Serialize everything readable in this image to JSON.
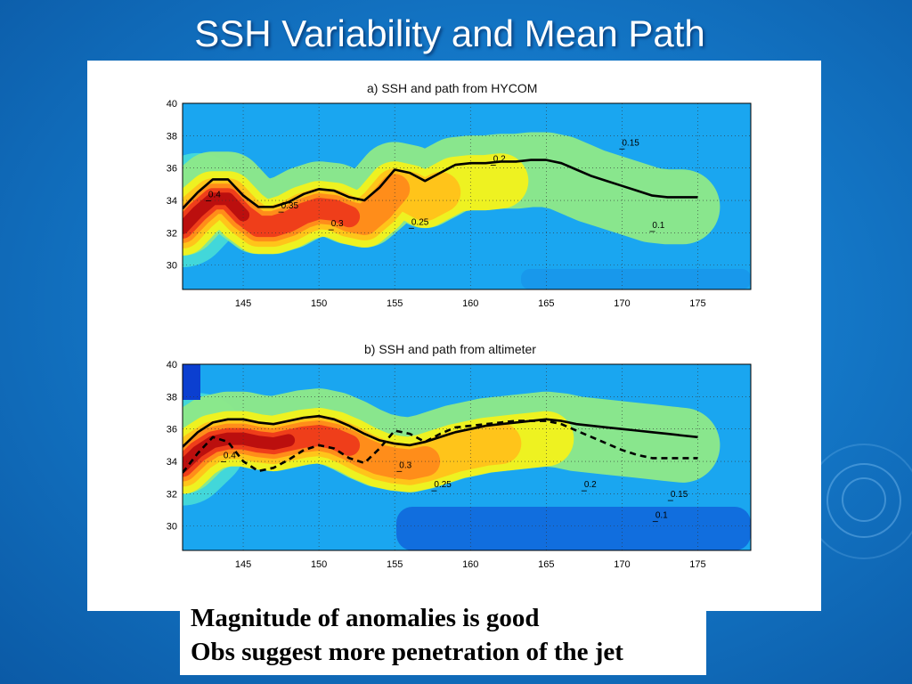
{
  "slide": {
    "title": "SSH Variability and Mean Path",
    "captions": [
      "Magnitude of anomalies is good",
      "Obs suggest more penetration of the jet"
    ]
  },
  "colors": {
    "background": "#1478c8",
    "scale": [
      "#0b3fd0",
      "#1aa6f0",
      "#44d8d8",
      "#8ee888",
      "#f2f21c",
      "#ffc21a",
      "#ff8a1a",
      "#ee3a1a",
      "#b80e0e"
    ]
  },
  "chart_data": [
    {
      "type": "heatmap",
      "title": "a) SSH and path from HYCOM",
      "x_ticks": [
        "145",
        "150",
        "155",
        "160",
        "165",
        "170",
        "175"
      ],
      "y_ticks": [
        "40",
        "38",
        "36",
        "34",
        "32",
        "30"
      ],
      "xlim": [
        141,
        178.5
      ],
      "ylim": [
        28.5,
        40
      ],
      "contour_labels": [
        {
          "text": "0.4",
          "x": 142.7,
          "y": 34.2
        },
        {
          "text": "0.35",
          "x": 147.5,
          "y": 33.5
        },
        {
          "text": "0.3",
          "x": 150.8,
          "y": 32.4
        },
        {
          "text": "0.25",
          "x": 156.1,
          "y": 32.5
        },
        {
          "text": "0.2",
          "x": 161.5,
          "y": 36.4
        },
        {
          "text": "0.15",
          "x": 170.0,
          "y": 37.4
        },
        {
          "text": "0.1",
          "x": 172.0,
          "y": 32.3
        }
      ],
      "paths": [
        {
          "style": "solid",
          "x": [
            141,
            142,
            143,
            144,
            145,
            146,
            147,
            148,
            149,
            150,
            151,
            152,
            153,
            154,
            155,
            156,
            157,
            158,
            159,
            160,
            161,
            162,
            163,
            164,
            165,
            166,
            167,
            168,
            169,
            170,
            171,
            172,
            173,
            174,
            175
          ],
          "y": [
            33.5,
            34.5,
            35.3,
            35.3,
            34.3,
            33.6,
            33.6,
            33.9,
            34.4,
            34.7,
            34.6,
            34.2,
            34.0,
            34.8,
            35.9,
            35.7,
            35.2,
            35.7,
            36.2,
            36.3,
            36.3,
            36.4,
            36.4,
            36.5,
            36.5,
            36.3,
            35.9,
            35.5,
            35.2,
            34.9,
            34.6,
            34.3,
            34.2,
            34.2,
            34.2
          ]
        }
      ]
    },
    {
      "type": "heatmap",
      "title": "b) SSH and path from altimeter",
      "x_ticks": [
        "145",
        "150",
        "155",
        "160",
        "165",
        "170",
        "175"
      ],
      "y_ticks": [
        "40",
        "38",
        "36",
        "34",
        "32",
        "30"
      ],
      "xlim": [
        141,
        178.5
      ],
      "ylim": [
        28.5,
        40
      ],
      "contour_labels": [
        {
          "text": "0.4",
          "x": 143.7,
          "y": 34.2
        },
        {
          "text": "0.3",
          "x": 155.3,
          "y": 33.6
        },
        {
          "text": "0.25",
          "x": 157.6,
          "y": 32.4
        },
        {
          "text": "0.2",
          "x": 167.5,
          "y": 32.4
        },
        {
          "text": "0.15",
          "x": 173.2,
          "y": 31.8
        },
        {
          "text": "0.1",
          "x": 172.2,
          "y": 30.5
        }
      ],
      "paths": [
        {
          "style": "solid",
          "x": [
            141,
            142,
            143,
            144,
            145,
            146,
            147,
            148,
            149,
            150,
            151,
            152,
            153,
            154,
            155,
            156,
            157,
            158,
            159,
            160,
            161,
            162,
            163,
            164,
            165,
            166,
            167,
            168,
            169,
            170,
            171,
            172,
            173,
            174,
            175
          ],
          "y": [
            34.9,
            35.8,
            36.4,
            36.6,
            36.6,
            36.4,
            36.3,
            36.5,
            36.7,
            36.8,
            36.6,
            36.2,
            35.7,
            35.3,
            35.1,
            35.0,
            35.2,
            35.5,
            35.8,
            36.0,
            36.2,
            36.3,
            36.4,
            36.5,
            36.6,
            36.5,
            36.3,
            36.2,
            36.1,
            36.0,
            35.9,
            35.8,
            35.7,
            35.6,
            35.5
          ]
        },
        {
          "style": "dashed",
          "x": [
            141,
            142,
            143,
            144,
            145,
            146,
            147,
            148,
            149,
            150,
            151,
            152,
            153,
            154,
            155,
            156,
            157,
            158,
            159,
            160,
            161,
            162,
            163,
            164,
            165,
            166,
            167,
            168,
            169,
            170,
            171,
            172,
            173,
            174,
            175
          ],
          "y": [
            33.3,
            34.5,
            35.5,
            35.2,
            34.0,
            33.4,
            33.6,
            34.1,
            34.7,
            35.0,
            34.8,
            34.2,
            33.9,
            34.8,
            35.9,
            35.7,
            35.2,
            35.7,
            36.1,
            36.2,
            36.3,
            36.4,
            36.5,
            36.5,
            36.5,
            36.3,
            35.9,
            35.5,
            35.1,
            34.7,
            34.4,
            34.2,
            34.2,
            34.2,
            34.2
          ]
        }
      ]
    }
  ]
}
